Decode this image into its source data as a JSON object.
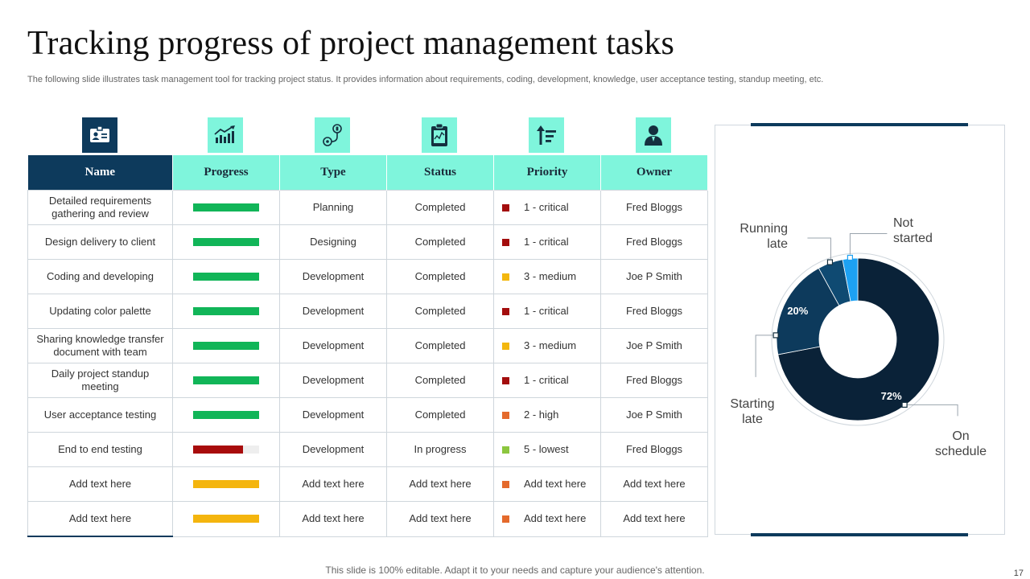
{
  "slide": {
    "title": "Tracking progress of project management tasks",
    "subtitle": "The following slide illustrates task management tool for tracking project status. It provides information about requirements, coding, development, knowledge, user acceptance testing, standup meeting, etc.",
    "footer": "This slide is 100% editable. Adapt it to your needs and capture your audience's attention.",
    "page_number": "17"
  },
  "icons": [
    "id-card-icon",
    "growth-chart-icon",
    "workflow-icon",
    "clipboard-chart-icon",
    "sort-priority-icon",
    "user-icon"
  ],
  "table": {
    "headers": [
      "Name",
      "Progress",
      "Type",
      "Status",
      "Priority",
      "Owner"
    ],
    "rows": [
      {
        "name": "Detailed requirements gathering and review",
        "progress": 1.0,
        "progress_color": "#11b558",
        "type": "Planning",
        "status": "Completed",
        "priority": "1 -  critical",
        "priority_color": "#a30d0d",
        "owner": "Fred Bloggs"
      },
      {
        "name": "Design delivery to client",
        "progress": 1.0,
        "progress_color": "#11b558",
        "type": "Designing",
        "status": "Completed",
        "priority": "1 -  critical",
        "priority_color": "#a30d0d",
        "owner": "Fred Bloggs"
      },
      {
        "name": "Coding and developing",
        "progress": 1.0,
        "progress_color": "#11b558",
        "type": "Development",
        "status": "Completed",
        "priority": "3 - medium",
        "priority_color": "#f3b70e",
        "owner": "Joe P Smith"
      },
      {
        "name": "Updating color palette",
        "progress": 1.0,
        "progress_color": "#11b558",
        "type": "Development",
        "status": "Completed",
        "priority": "1 -  critical",
        "priority_color": "#a30d0d",
        "owner": "Fred Bloggs"
      },
      {
        "name": "Sharing knowledge transfer document with team",
        "progress": 1.0,
        "progress_color": "#11b558",
        "type": "Development",
        "status": "Completed",
        "priority": "3 - medium",
        "priority_color": "#f3b70e",
        "owner": "Joe P Smith"
      },
      {
        "name": "Daily project standup meeting",
        "progress": 1.0,
        "progress_color": "#11b558",
        "type": "Development",
        "status": "Completed",
        "priority": "1 -  critical",
        "priority_color": "#a30d0d",
        "owner": "Fred Bloggs"
      },
      {
        "name": "User acceptance testing",
        "progress": 1.0,
        "progress_color": "#11b558",
        "type": "Development",
        "status": "Completed",
        "priority": "2 -  high",
        "priority_color": "#e46a2c",
        "owner": "Joe P Smith"
      },
      {
        "name": "End to end testing",
        "progress": 0.76,
        "progress_color": "#a80c0c",
        "type": "Development",
        "status": "In progress",
        "priority": "5 -  lowest",
        "priority_color": "#8cc63f",
        "owner": "Fred Bloggs"
      },
      {
        "name": "Add text here",
        "progress": 1.0,
        "progress_color": "#f4b50e",
        "type": "Add text here",
        "status": "Add text here",
        "priority": "Add text here",
        "priority_color": "#e46a2c",
        "owner": "Add text here"
      },
      {
        "name": "Add text here",
        "progress": 1.0,
        "progress_color": "#f4b50e",
        "type": "Add text here",
        "status": "Add text here",
        "priority": "Add text here",
        "priority_color": "#e46a2c",
        "owner": "Add text here"
      }
    ]
  },
  "chart_data": {
    "type": "pie",
    "variant": "donut",
    "slices": [
      {
        "label": "On schedule",
        "value": 72,
        "value_label": "72%",
        "color": "#0a2238"
      },
      {
        "label": "Starting late",
        "value": 20,
        "value_label": "20%",
        "color": "#0d3a5c"
      },
      {
        "label": "Running late",
        "value": 5,
        "value_label": "",
        "color": "#0f4a72"
      },
      {
        "label": "Not started",
        "value": 3,
        "value_label": "",
        "color": "#1da1f2"
      }
    ],
    "callouts": {
      "running_late": "Running late",
      "not_started": "Not started",
      "starting_late": "Starting late",
      "on_schedule": "On schedule"
    }
  }
}
